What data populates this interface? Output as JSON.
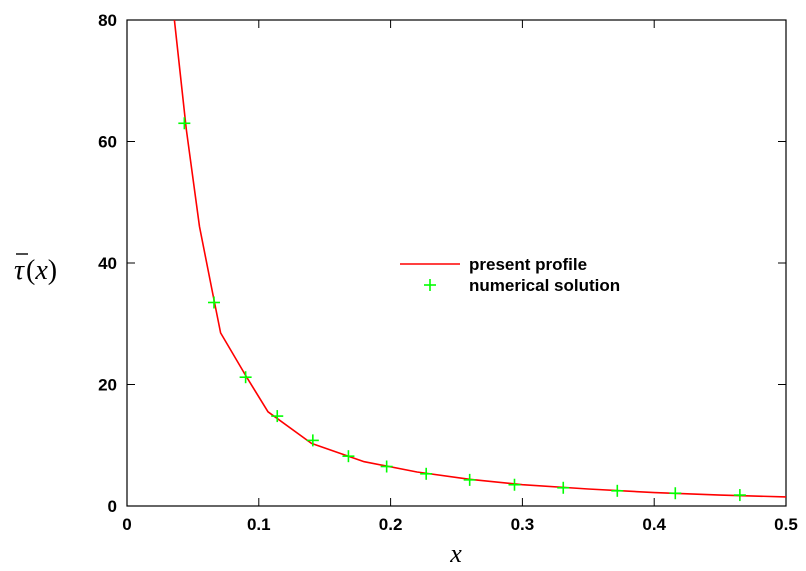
{
  "chart_data": {
    "type": "line",
    "xlabel": "x",
    "ylabel": "τ̄(x)",
    "ylabel_parts": {
      "symbol": "τ",
      "open": "(",
      "var": "x",
      "close": ")"
    },
    "xlim": [
      0,
      0.5
    ],
    "ylim": [
      0,
      80
    ],
    "x_ticks": [
      0,
      0.1,
      0.2,
      0.3,
      0.4,
      0.5
    ],
    "x_tick_labels": [
      "0",
      "0.1",
      "0.2",
      "0.3",
      "0.4",
      "0.5"
    ],
    "y_ticks": [
      0,
      20,
      40,
      60,
      80
    ],
    "y_tick_labels": [
      "0",
      "20",
      "40",
      "60",
      "80"
    ],
    "grid": false,
    "legend_position": "center-right",
    "series": [
      {
        "name": "present profile",
        "style": "line",
        "color": "#ff0000",
        "x": [
          0.036,
          0.045,
          0.055,
          0.065,
          0.071,
          0.09,
          0.107,
          0.14,
          0.18,
          0.22,
          0.26,
          0.3,
          0.35,
          0.4,
          0.45,
          0.5
        ],
        "y": [
          80,
          62,
          46,
          35,
          28.5,
          21.5,
          15.5,
          10.3,
          7.3,
          5.6,
          4.4,
          3.5,
          2.8,
          2.2,
          1.8,
          1.5
        ]
      },
      {
        "name": "numerical solution",
        "style": "marker",
        "marker": "+",
        "color": "#00ff00",
        "x": [
          0.0435,
          0.066,
          0.09,
          0.114,
          0.141,
          0.168,
          0.197,
          0.227,
          0.26,
          0.294,
          0.331,
          0.372,
          0.416,
          0.465
        ],
        "y": [
          63,
          33.5,
          21.2,
          14.8,
          10.8,
          8.2,
          6.5,
          5.3,
          4.3,
          3.5,
          3.0,
          2.5,
          2.1,
          1.8
        ]
      }
    ]
  }
}
